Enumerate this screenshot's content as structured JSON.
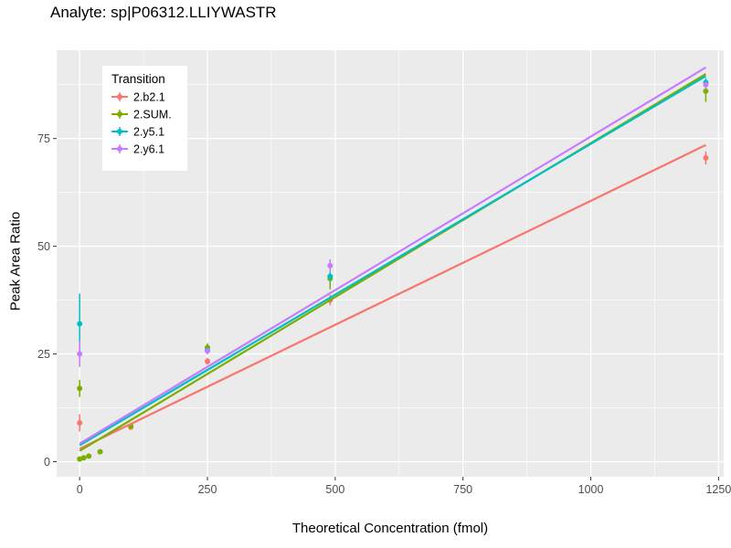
{
  "chart_data": {
    "type": "scatter",
    "title": "Analyte: sp|P06312.LLIYWASTR",
    "xlabel": "Theoretical Concentration (fmol)",
    "ylabel": "Peak Area Ratio",
    "xlim": [
      -45,
      1260
    ],
    "ylim": [
      -3.5,
      95.5
    ],
    "xticks": [
      0,
      250,
      500,
      750,
      1000,
      1250
    ],
    "yticks": [
      0,
      25,
      50,
      75
    ],
    "grid": true,
    "panel_bg": "#EBEBEB",
    "grid_color": "#FFFFFF",
    "tick_color": "#333333",
    "tick_label_color": "#4D4D4D",
    "legend": {
      "title": "Transition",
      "position": "inside-top-left"
    },
    "series": [
      {
        "name": "2.b2.1",
        "color": "#F8766D",
        "points": [
          {
            "x": 0,
            "y": 9,
            "err": 2
          },
          {
            "x": 100,
            "y": 8,
            "err": 0.5
          },
          {
            "x": 250,
            "y": 23.3,
            "err": 0.8
          },
          {
            "x": 490,
            "y": 37.5,
            "err": 1.2
          },
          {
            "x": 1225,
            "y": 70.5,
            "err": 1.5
          }
        ],
        "fit": {
          "x": [
            0,
            1225
          ],
          "y": [
            3.0,
            73.5
          ]
        }
      },
      {
        "name": "2.SUM.",
        "color": "#7CAE00",
        "points": [
          {
            "x": 0,
            "y": 0.6,
            "err": 0.3
          },
          {
            "x": 0,
            "y": 17,
            "err": 2
          },
          {
            "x": 8,
            "y": 0.9,
            "err": 0.3
          },
          {
            "x": 18,
            "y": 1.3,
            "err": 0.3
          },
          {
            "x": 40,
            "y": 2.3,
            "err": 0.3
          },
          {
            "x": 100,
            "y": 8.3,
            "err": 0.5
          },
          {
            "x": 250,
            "y": 26.5,
            "err": 1
          },
          {
            "x": 490,
            "y": 42.5,
            "err": 2.5
          },
          {
            "x": 1225,
            "y": 86,
            "err": 2.5
          }
        ],
        "fit": {
          "x": [
            0,
            1225
          ],
          "y": [
            2.5,
            90.0
          ]
        }
      },
      {
        "name": "2.y5.1",
        "color": "#00BFC4",
        "points": [
          {
            "x": 0,
            "y": 32,
            "err": 7
          },
          {
            "x": 250,
            "y": 25.9,
            "err": 0.8
          },
          {
            "x": 490,
            "y": 43,
            "err": 1.5
          },
          {
            "x": 1225,
            "y": 88,
            "err": 1
          }
        ],
        "fit": {
          "x": [
            0,
            1225
          ],
          "y": [
            3.8,
            89.5
          ]
        }
      },
      {
        "name": "2.y6.1",
        "color": "#C77CFF",
        "points": [
          {
            "x": 0,
            "y": 25,
            "err": 3
          },
          {
            "x": 250,
            "y": 25.7,
            "err": 0.8
          },
          {
            "x": 490,
            "y": 45.5,
            "err": 1.5
          },
          {
            "x": 1225,
            "y": 87.5,
            "err": 1
          }
        ],
        "fit": {
          "x": [
            0,
            1225
          ],
          "y": [
            4.2,
            91.5
          ]
        }
      }
    ]
  }
}
